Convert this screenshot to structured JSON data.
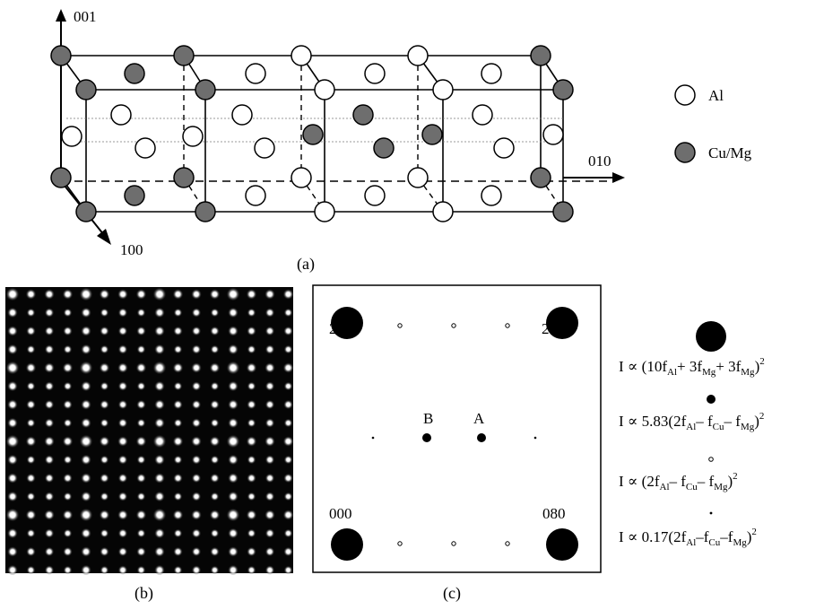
{
  "panel_a": {
    "caption": "(a)",
    "axis_001": "001",
    "axis_010": "010",
    "axis_100": "100",
    "legend": [
      {
        "label": "Al",
        "color": "#ffffff"
      },
      {
        "label": "Cu/Mg",
        "color": "#6e6e6e"
      }
    ]
  },
  "panel_b": {
    "caption": "(b)"
  },
  "panel_c": {
    "caption": "(c)",
    "corner_labels": {
      "top_left": "200",
      "top_right": "280",
      "bottom_left": "000",
      "bottom_right": "080"
    },
    "spot_labels": {
      "B": "B",
      "A": "A"
    }
  },
  "formulas": {
    "f1": {
      "pre": "I ∝ (10f",
      "s1": "Al",
      "m1": "+ 3f",
      "s2": "Mg",
      "m2": "+ 3f",
      "s3": "Mg",
      "post": ")",
      "exp": "2"
    },
    "f2": {
      "pre": "I ∝ 5.83(2f",
      "s1": "Al",
      "m1": "– f",
      "s2": "Cu",
      "m2": "– f",
      "s3": "Mg",
      "post": ")",
      "exp": "2"
    },
    "f3": {
      "pre": "I ∝ (2f",
      "s1": "Al",
      "m1": "– f",
      "s2": "Cu",
      "m2": "– f",
      "s3": "Mg",
      "post": ")",
      "exp": "2"
    },
    "f4": {
      "pre": "I ∝ 0.17(2f",
      "s1": "Al",
      "m1": "–f",
      "s2": "Cu",
      "m2": "–f",
      "s3": "Mg",
      "post": ")",
      "exp": "2"
    }
  }
}
